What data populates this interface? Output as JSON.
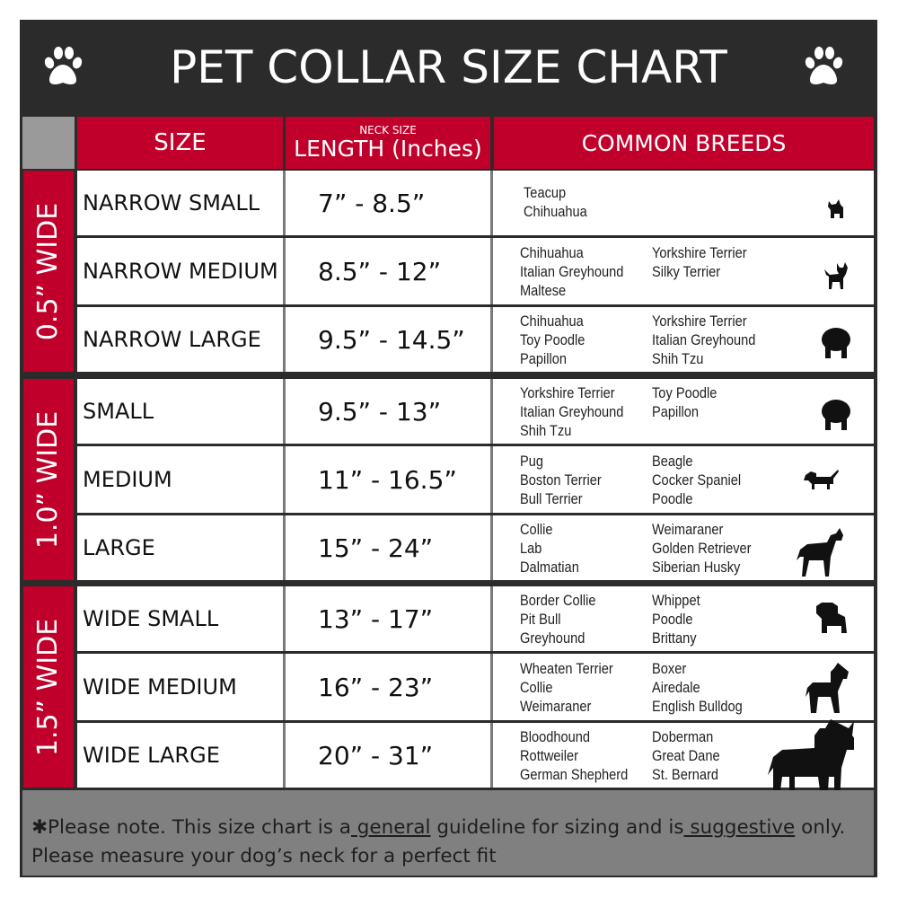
{
  "title": "PET COLLAR SIZE CHART",
  "colors": {
    "dark": "#2b2b2b",
    "red": "#c0002a",
    "footer_gray": "#808080"
  },
  "header": {
    "size": "SIZE",
    "length_small": "NECK SIZE",
    "length": "LENGTH (Inches)",
    "breeds": "COMMON BREEDS"
  },
  "groups": [
    {
      "label": "0.5” WIDE",
      "rows": [
        {
          "size": "NARROW SMALL",
          "length": "7” - 8.5”",
          "col1": [
            "Teacup",
            "Chihuahua"
          ],
          "col2": [],
          "icon": "yorkie-silhouette-icon"
        },
        {
          "size": "NARROW MEDIUM",
          "length": "8.5” - 12”",
          "col1": [
            "Chihuahua",
            "Italian Greyhound",
            "Maltese"
          ],
          "col2": [
            "Yorkshire Terrier",
            "Silky Terrier"
          ],
          "icon": "chihuahua-silhouette-icon"
        },
        {
          "size": "NARROW LARGE",
          "length": "9.5” - 14.5”",
          "col1": [
            "Chihuahua",
            "Toy Poodle",
            "Papillon"
          ],
          "col2": [
            "Yorkshire Terrier",
            "Italian Greyhound",
            "Shih Tzu"
          ],
          "icon": "pomeranian-silhouette-icon"
        }
      ]
    },
    {
      "label": "1.0” WIDE",
      "rows": [
        {
          "size": "SMALL",
          "length": "9.5” - 13”",
          "col1": [
            "Yorkshire Terrier",
            "Italian Greyhound",
            "Shih Tzu"
          ],
          "col2": [
            "Toy Poodle",
            "Papillon"
          ],
          "icon": "pomeranian-silhouette-icon"
        },
        {
          "size": "MEDIUM",
          "length": "11” - 16.5”",
          "col1": [
            "Pug",
            "Boston Terrier",
            "Bull Terrier"
          ],
          "col2": [
            "Beagle",
            "Cocker Spaniel",
            "Poodle"
          ],
          "icon": "dachshund-silhouette-icon"
        },
        {
          "size": "LARGE",
          "length": "15” - 24”",
          "col1": [
            "Collie",
            "Lab",
            "Dalmatian"
          ],
          "col2": [
            "Weimaraner",
            "Golden Retriever",
            "Siberian Husky"
          ],
          "icon": "shepherd-silhouette-icon"
        }
      ]
    },
    {
      "label": "1.5” WIDE",
      "rows": [
        {
          "size": "WIDE SMALL",
          "length": "13” - 17”",
          "col1": [
            "Border Collie",
            "Pit Bull",
            "Greyhound"
          ],
          "col2": [
            "Whippet",
            "Poodle",
            "Brittany"
          ],
          "icon": "bulldog-silhouette-icon"
        },
        {
          "size": "WIDE MEDIUM",
          "length": "16” - 23”",
          "col1": [
            "Wheaten Terrier",
            "Collie",
            "Weimaraner"
          ],
          "col2": [
            "Boxer",
            "Airedale",
            "English Bulldog"
          ],
          "icon": "pitbull-silhouette-icon"
        },
        {
          "size": "WIDE LARGE",
          "length": "20” - 31”",
          "col1": [
            "Bloodhound",
            "Rottweiler",
            "German Shepherd"
          ],
          "col2": [
            "Doberman",
            "Great Dane",
            "St. Bernard"
          ],
          "icon": "doberman-silhouette-icon"
        }
      ]
    }
  ],
  "footer": {
    "part1": "✱Please note. This size chart is a",
    "underline1": " general",
    "part2": " guideline for sizing and is",
    "underline2": " suggestive",
    "part3": " only.",
    "line2": "Please measure your dog’s neck for a perfect fit"
  }
}
